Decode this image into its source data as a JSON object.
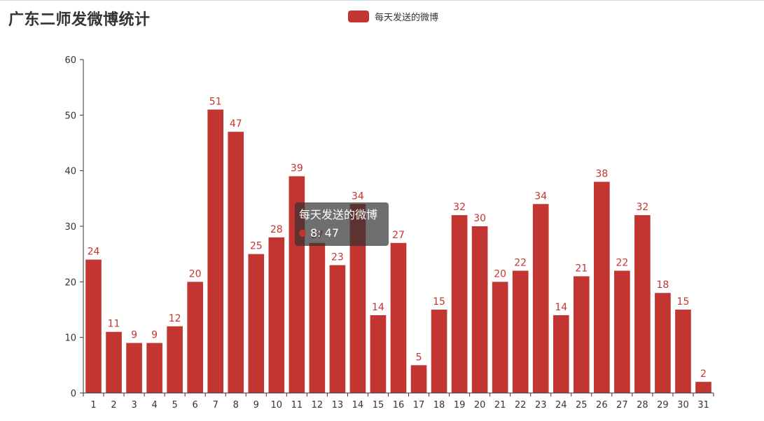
{
  "title": "广东二师发微博统计",
  "legend": {
    "label": "每天发送的微博"
  },
  "tooltip": {
    "series": "每天发送的微博",
    "value_text": "8: 47"
  },
  "colors": {
    "bar": "#c23531",
    "axis": "#333333",
    "label": "#c23531"
  },
  "chart_data": {
    "type": "bar",
    "title": "广东二师发微博统计",
    "categories": [
      "1",
      "2",
      "3",
      "4",
      "5",
      "6",
      "7",
      "8",
      "9",
      "10",
      "11",
      "12",
      "13",
      "14",
      "15",
      "16",
      "17",
      "18",
      "19",
      "20",
      "21",
      "22",
      "23",
      "24",
      "25",
      "26",
      "27",
      "28",
      "29",
      "30",
      "31"
    ],
    "series": [
      {
        "name": "每天发送的微博",
        "values": [
          24,
          11,
          9,
          9,
          12,
          20,
          51,
          47,
          25,
          28,
          39,
          27,
          23,
          34,
          14,
          27,
          5,
          15,
          32,
          30,
          20,
          22,
          34,
          14,
          21,
          38,
          22,
          32,
          18,
          15,
          2
        ]
      }
    ],
    "yticks": [
      0,
      10,
      20,
      30,
      40,
      50,
      60
    ],
    "ylim": [
      0,
      60
    ],
    "xlabel": "",
    "ylabel": "",
    "grid": false,
    "legend_position": "top-center",
    "data_labels": true
  }
}
